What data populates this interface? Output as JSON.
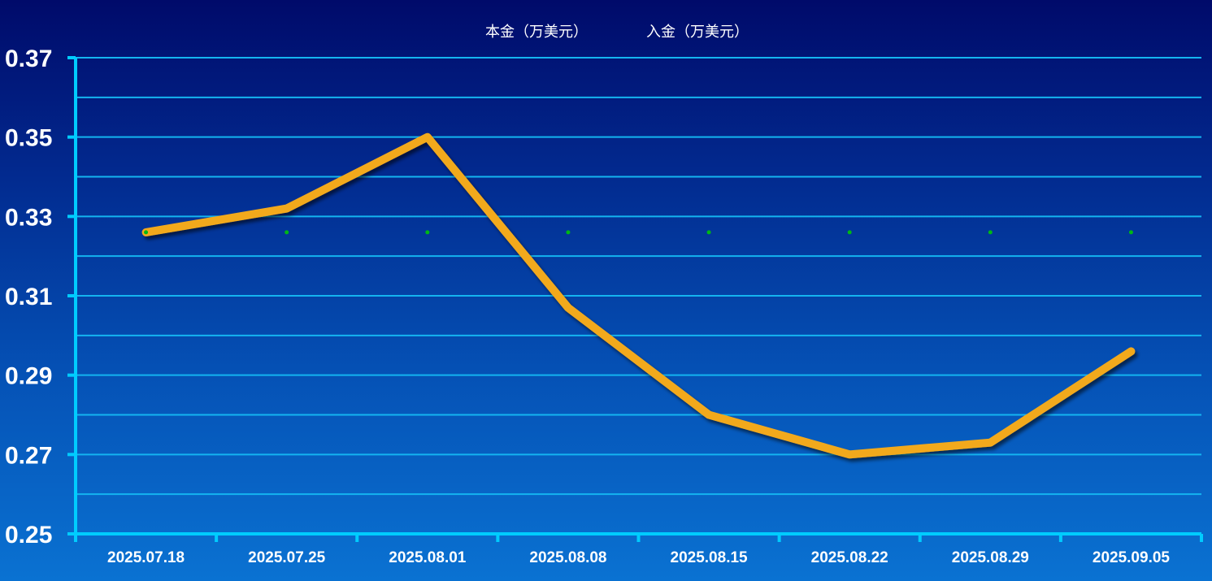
{
  "chart_data": {
    "type": "line",
    "title": "",
    "xlabel": "",
    "ylabel": "",
    "categories": [
      "2025.07.18",
      "2025.07.25",
      "2025.08.01",
      "2025.08.08",
      "2025.08.15",
      "2025.08.22",
      "2025.08.29",
      "2025.09.05"
    ],
    "ylim": [
      0.25,
      0.37
    ],
    "yticks": [
      "0.25",
      "0.27",
      "0.29",
      "0.31",
      "0.33",
      "0.35",
      "0.37"
    ],
    "grid": true,
    "legend_position": "top-center",
    "series": [
      {
        "name": "本金（万美元）",
        "color": "#f2a91c",
        "values": [
          0.326,
          0.332,
          0.35,
          0.307,
          0.28,
          0.27,
          0.273,
          0.296
        ]
      },
      {
        "name": "入金（万美元）",
        "color": "#00b814",
        "values": [
          0.326,
          0.326,
          0.326,
          0.326,
          0.326,
          0.326,
          0.326,
          0.326
        ]
      }
    ],
    "colors": {
      "axis": "#00ccff",
      "grid": "#14b4f0"
    }
  }
}
